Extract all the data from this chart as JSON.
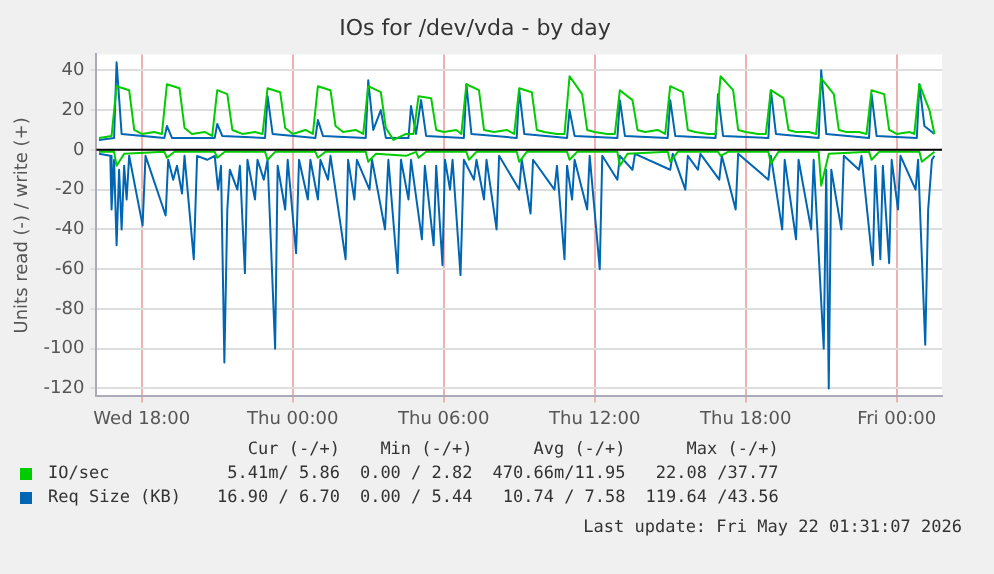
{
  "chart_data": {
    "type": "line",
    "title": "IOs for /dev/vda - by day",
    "ylabel": "Units read (-) / write (+)",
    "xlim": [
      "2026-05-20T16:12",
      "2026-05-22T01:48"
    ],
    "xticks": [
      {
        "value": "2026-05-20T18:00",
        "label": "Wed 18:00"
      },
      {
        "value": "2026-05-21T00:00",
        "label": "Thu 00:00"
      },
      {
        "value": "2026-05-21T06:00",
        "label": "Thu 06:00"
      },
      {
        "value": "2026-05-21T12:00",
        "label": "Thu 12:00"
      },
      {
        "value": "2026-05-21T18:00",
        "label": "Thu 18:00"
      },
      {
        "value": "2026-05-22T00:00",
        "label": "Fri 00:00"
      }
    ],
    "ylim": [
      -124,
      48
    ],
    "yticks": [
      -120,
      -100,
      -80,
      -60,
      -40,
      -20,
      0,
      20,
      40
    ],
    "grid": true,
    "legend": "bottom",
    "marker": "none",
    "line_style": "solid",
    "ref_lines": [
      {
        "axis": "y",
        "value": 0,
        "color": "#000000"
      }
    ],
    "series": [
      {
        "name": "IO/sec",
        "color": "#00cc00",
        "x": [
          "2026-05-20T16:18",
          "2026-05-20T16:48",
          "2026-05-20T17:00",
          "2026-05-20T17:30",
          "2026-05-20T17:42",
          "2026-05-20T18:00",
          "2026-05-20T18:30",
          "2026-05-20T18:48",
          "2026-05-20T19:00",
          "2026-05-20T19:30",
          "2026-05-20T19:42",
          "2026-05-20T20:00",
          "2026-05-20T20:30",
          "2026-05-20T20:48",
          "2026-05-20T21:00",
          "2026-05-20T21:24",
          "2026-05-20T21:36",
          "2026-05-20T22:00",
          "2026-05-20T22:30",
          "2026-05-20T22:48",
          "2026-05-20T23:00",
          "2026-05-20T23:30",
          "2026-05-20T23:42",
          "2026-05-21T00:00",
          "2026-05-21T00:30",
          "2026-05-21T00:48",
          "2026-05-21T01:00",
          "2026-05-21T01:30",
          "2026-05-21T01:42",
          "2026-05-21T02:00",
          "2026-05-21T02:30",
          "2026-05-21T02:48",
          "2026-05-21T03:00",
          "2026-05-21T03:30",
          "2026-05-21T03:42",
          "2026-05-21T04:00",
          "2026-05-21T04:30",
          "2026-05-21T04:48",
          "2026-05-21T05:00",
          "2026-05-21T05:30",
          "2026-05-21T05:42",
          "2026-05-21T06:00",
          "2026-05-21T06:30",
          "2026-05-21T06:42",
          "2026-05-21T06:54",
          "2026-05-21T07:24",
          "2026-05-21T07:36",
          "2026-05-21T08:00",
          "2026-05-21T08:30",
          "2026-05-21T08:48",
          "2026-05-21T09:00",
          "2026-05-21T09:30",
          "2026-05-21T09:42",
          "2026-05-21T10:00",
          "2026-05-21T10:30",
          "2026-05-21T10:48",
          "2026-05-21T11:00",
          "2026-05-21T11:30",
          "2026-05-21T11:42",
          "2026-05-21T12:00",
          "2026-05-21T12:30",
          "2026-05-21T12:48",
          "2026-05-21T13:00",
          "2026-05-21T13:30",
          "2026-05-21T13:42",
          "2026-05-21T14:00",
          "2026-05-21T14:30",
          "2026-05-21T14:48",
          "2026-05-21T15:00",
          "2026-05-21T15:30",
          "2026-05-21T15:42",
          "2026-05-21T16:00",
          "2026-05-21T16:30",
          "2026-05-21T16:48",
          "2026-05-21T17:00",
          "2026-05-21T17:30",
          "2026-05-21T17:42",
          "2026-05-21T18:00",
          "2026-05-21T18:30",
          "2026-05-21T18:48",
          "2026-05-21T19:00",
          "2026-05-21T19:30",
          "2026-05-21T19:42",
          "2026-05-21T20:00",
          "2026-05-21T20:30",
          "2026-05-21T20:48",
          "2026-05-21T21:00",
          "2026-05-21T21:30",
          "2026-05-21T21:42",
          "2026-05-21T22:00",
          "2026-05-21T22:30",
          "2026-05-21T22:48",
          "2026-05-21T23:00",
          "2026-05-21T23:30",
          "2026-05-21T23:42",
          "2026-05-22T00:00",
          "2026-05-22T00:30",
          "2026-05-22T00:42",
          "2026-05-22T00:54",
          "2026-05-22T01:18",
          "2026-05-22T01:30"
        ],
        "values": [
          6,
          7,
          32,
          30,
          10,
          8,
          9,
          8,
          33,
          31,
          11,
          8,
          9,
          7,
          30,
          28,
          10,
          8,
          9,
          8,
          31,
          29,
          11,
          8,
          10,
          8,
          32,
          30,
          12,
          9,
          10,
          8,
          32,
          29,
          11,
          5,
          8,
          8,
          27,
          26,
          10,
          9,
          10,
          8,
          33,
          30,
          10,
          9,
          10,
          8,
          31,
          29,
          10,
          9,
          8,
          8,
          37,
          28,
          10,
          9,
          8,
          8,
          30,
          25,
          10,
          9,
          10,
          8,
          32,
          29,
          10,
          9,
          8,
          8,
          37,
          30,
          10,
          9,
          8,
          8,
          30,
          26,
          10,
          9,
          9,
          8,
          36,
          28,
          10,
          9,
          9,
          8,
          30,
          28,
          10,
          8,
          9,
          8,
          33,
          20,
          8
        ]
      },
      {
        "name": "Req Size (KB)",
        "color": "#0066b3",
        "x": [
          "2026-05-20T16:18",
          "2026-05-20T16:54",
          "2026-05-20T17:00",
          "2026-05-20T17:12",
          "2026-05-20T18:54",
          "2026-05-20T19:00",
          "2026-05-20T19:12",
          "2026-05-20T20:54",
          "2026-05-20T21:00",
          "2026-05-20T21:12",
          "2026-05-20T22:54",
          "2026-05-20T23:00",
          "2026-05-20T23:12",
          "2026-05-21T00:54",
          "2026-05-21T01:00",
          "2026-05-21T01:12",
          "2026-05-21T02:54",
          "2026-05-21T03:00",
          "2026-05-21T03:12",
          "2026-05-21T03:30",
          "2026-05-21T03:42",
          "2026-05-21T04:36",
          "2026-05-21T04:42",
          "2026-05-21T04:54",
          "2026-05-21T05:06",
          "2026-05-21T05:18",
          "2026-05-21T06:48",
          "2026-05-21T06:54",
          "2026-05-21T07:06",
          "2026-05-21T08:54",
          "2026-05-21T09:00",
          "2026-05-21T09:12",
          "2026-05-21T10:54",
          "2026-05-21T11:00",
          "2026-05-21T11:12",
          "2026-05-21T12:54",
          "2026-05-21T13:00",
          "2026-05-21T13:12",
          "2026-05-21T14:54",
          "2026-05-21T15:00",
          "2026-05-21T15:12",
          "2026-05-21T16:48",
          "2026-05-21T16:54",
          "2026-05-21T17:06",
          "2026-05-21T18:54",
          "2026-05-21T19:00",
          "2026-05-21T19:12",
          "2026-05-21T20:54",
          "2026-05-21T21:00",
          "2026-05-21T21:12",
          "2026-05-21T22:54",
          "2026-05-21T23:00",
          "2026-05-21T23:12",
          "2026-05-22T00:48",
          "2026-05-22T00:54",
          "2026-05-22T01:06",
          "2026-05-22T01:30"
        ],
        "values": [
          5,
          6,
          44,
          8,
          6,
          12,
          6,
          6,
          13,
          7,
          6,
          27,
          8,
          6,
          15,
          7,
          6,
          35,
          10,
          20,
          6,
          6,
          22,
          8,
          25,
          7,
          6,
          33,
          8,
          6,
          30,
          8,
          6,
          20,
          7,
          6,
          25,
          7,
          6,
          25,
          7,
          6,
          28,
          7,
          6,
          30,
          8,
          6,
          40,
          8,
          6,
          28,
          7,
          6,
          33,
          12,
          8
        ]
      },
      {
        "color": "#00cc00",
        "x": [
          "2026-05-20T16:18",
          "2026-05-20T16:54",
          "2026-05-20T17:00",
          "2026-05-20T17:18",
          "2026-05-20T18:54",
          "2026-05-20T19:00",
          "2026-05-20T19:18",
          "2026-05-20T20:54",
          "2026-05-20T21:00",
          "2026-05-20T21:18",
          "2026-05-20T22:54",
          "2026-05-20T23:00",
          "2026-05-20T23:18",
          "2026-05-21T00:54",
          "2026-05-21T01:00",
          "2026-05-21T01:18",
          "2026-05-21T02:54",
          "2026-05-21T03:00",
          "2026-05-21T03:18",
          "2026-05-21T04:30",
          "2026-05-21T04:54",
          "2026-05-21T05:00",
          "2026-05-21T05:18",
          "2026-05-21T06:54",
          "2026-05-21T07:00",
          "2026-05-21T07:18",
          "2026-05-21T08:54",
          "2026-05-21T09:00",
          "2026-05-21T09:18",
          "2026-05-21T10:54",
          "2026-05-21T11:00",
          "2026-05-21T11:18",
          "2026-05-21T12:54",
          "2026-05-21T13:00",
          "2026-05-21T13:18",
          "2026-05-21T14:54",
          "2026-05-21T15:00",
          "2026-05-21T15:18",
          "2026-05-21T16:54",
          "2026-05-21T17:00",
          "2026-05-21T17:18",
          "2026-05-21T18:54",
          "2026-05-21T19:00",
          "2026-05-21T19:18",
          "2026-05-21T20:54",
          "2026-05-21T21:00",
          "2026-05-21T21:18",
          "2026-05-21T22:54",
          "2026-05-21T23:00",
          "2026-05-21T23:18",
          "2026-05-22T00:54",
          "2026-05-22T01:00",
          "2026-05-22T01:30"
        ],
        "values": [
          -1,
          -1,
          -8,
          -2,
          -1,
          -4,
          -1,
          -1,
          -4,
          -1,
          -1,
          -5,
          -1,
          -1,
          -4,
          -1,
          -1,
          -6,
          -2,
          -3,
          -1,
          -4,
          -1,
          -1,
          -5,
          -1,
          -1,
          -6,
          -1,
          -1,
          -5,
          -1,
          -1,
          -8,
          -2,
          -1,
          -6,
          -1,
          -1,
          -3,
          -1,
          -1,
          -7,
          -1,
          -1,
          -18,
          -2,
          -1,
          -5,
          -1,
          -1,
          -6,
          -1
        ]
      },
      {
        "color": "#0066b3",
        "x": [
          "2026-05-20T16:18",
          "2026-05-20T16:45",
          "2026-05-20T16:48",
          "2026-05-20T16:54",
          "2026-05-20T17:00",
          "2026-05-20T17:06",
          "2026-05-20T17:12",
          "2026-05-20T17:18",
          "2026-05-20T17:24",
          "2026-05-20T17:30",
          "2026-05-20T18:02",
          "2026-05-20T18:09",
          "2026-05-20T18:57",
          "2026-05-20T19:03",
          "2026-05-20T19:15",
          "2026-05-20T19:24",
          "2026-05-20T19:36",
          "2026-05-20T19:42",
          "2026-05-20T20:04",
          "2026-05-20T20:12",
          "2026-05-20T20:36",
          "2026-05-20T20:54",
          "2026-05-20T21:02",
          "2026-05-20T21:09",
          "2026-05-20T21:17",
          "2026-05-20T21:24",
          "2026-05-20T21:30",
          "2026-05-20T21:48",
          "2026-05-20T21:54",
          "2026-05-20T22:06",
          "2026-05-20T22:12",
          "2026-05-20T22:30",
          "2026-05-20T22:36",
          "2026-05-20T22:51",
          "2026-05-20T23:00",
          "2026-05-20T23:18",
          "2026-05-20T23:24",
          "2026-05-20T23:42",
          "2026-05-20T23:48",
          "2026-05-21T00:08",
          "2026-05-21T00:15",
          "2026-05-21T00:36",
          "2026-05-21T00:42",
          "2026-05-21T01:00",
          "2026-05-21T01:06",
          "2026-05-21T01:24",
          "2026-05-21T01:30",
          "2026-05-21T02:06",
          "2026-05-21T02:12",
          "2026-05-21T02:27",
          "2026-05-21T02:33",
          "2026-05-21T03:03",
          "2026-05-21T03:09",
          "2026-05-21T03:40",
          "2026-05-21T03:48",
          "2026-05-21T04:10",
          "2026-05-21T04:18",
          "2026-05-21T04:36",
          "2026-05-21T04:42",
          "2026-05-21T05:08",
          "2026-05-21T05:15",
          "2026-05-21T05:36",
          "2026-05-21T05:42",
          "2026-05-21T05:57",
          "2026-05-21T06:03",
          "2026-05-21T06:15",
          "2026-05-21T06:21",
          "2026-05-21T06:40",
          "2026-05-21T06:48",
          "2026-05-21T07:12",
          "2026-05-21T07:18",
          "2026-05-21T07:36",
          "2026-05-21T07:42",
          "2026-05-21T08:06",
          "2026-05-21T08:12",
          "2026-05-21T09:00",
          "2026-05-21T09:06",
          "2026-05-21T09:27",
          "2026-05-21T09:33",
          "2026-05-21T10:24",
          "2026-05-21T10:30",
          "2026-05-21T10:48",
          "2026-05-21T10:54",
          "2026-05-21T11:06",
          "2026-05-21T11:12",
          "2026-05-21T11:42",
          "2026-05-21T11:48",
          "2026-05-21T12:12",
          "2026-05-21T12:18",
          "2026-05-21T12:54",
          "2026-05-21T13:00",
          "2026-05-21T13:30",
          "2026-05-21T13:36",
          "2026-05-21T15:00",
          "2026-05-21T15:06",
          "2026-05-21T15:36",
          "2026-05-21T15:42",
          "2026-05-21T16:06",
          "2026-05-21T16:12",
          "2026-05-21T16:57",
          "2026-05-21T17:03",
          "2026-05-21T17:36",
          "2026-05-21T17:42",
          "2026-05-21T18:54",
          "2026-05-21T19:00",
          "2026-05-21T19:27",
          "2026-05-21T19:33",
          "2026-05-21T20:00",
          "2026-05-21T20:06",
          "2026-05-21T20:36",
          "2026-05-21T20:42",
          "2026-05-21T21:06",
          "2026-05-21T21:12",
          "2026-05-21T21:18",
          "2026-05-21T21:24",
          "2026-05-21T21:48",
          "2026-05-21T21:54",
          "2026-05-21T22:30",
          "2026-05-21T22:36",
          "2026-05-21T23:03",
          "2026-05-21T23:09",
          "2026-05-21T23:21",
          "2026-05-21T23:27",
          "2026-05-21T23:42",
          "2026-05-21T23:48",
          "2026-05-22T00:03",
          "2026-05-22T00:09",
          "2026-05-22T00:45",
          "2026-05-22T00:51",
          "2026-05-22T01:08",
          "2026-05-22T01:15",
          "2026-05-22T01:24",
          "2026-05-22T01:30"
        ],
        "values": [
          -2,
          -3,
          -30,
          -5,
          -48,
          -10,
          -40,
          -8,
          -25,
          -3,
          -38,
          -3,
          -33,
          -5,
          -15,
          -8,
          -22,
          -3,
          -55,
          -3,
          -5,
          -3,
          -20,
          -8,
          -107,
          -30,
          -10,
          -20,
          -8,
          -62,
          -5,
          -25,
          -5,
          -15,
          -5,
          -100,
          -8,
          -30,
          -5,
          -52,
          -5,
          -25,
          -5,
          -25,
          -5,
          -15,
          -3,
          -55,
          -5,
          -25,
          -5,
          -20,
          -5,
          -40,
          -5,
          -62,
          -5,
          -25,
          -5,
          -45,
          -8,
          -48,
          -8,
          -58,
          -5,
          -20,
          -5,
          -63,
          -5,
          -15,
          -5,
          -25,
          -5,
          -40,
          -3,
          -20,
          -5,
          -32,
          -5,
          -20,
          -8,
          -55,
          -8,
          -25,
          -5,
          -30,
          -3,
          -60,
          -3,
          -15,
          -3,
          -10,
          -2,
          -10,
          -2,
          -20,
          -3,
          -10,
          -2,
          -15,
          -3,
          -30,
          -2,
          -15,
          -3,
          -40,
          -5,
          -45,
          -5,
          -40,
          -5,
          -100,
          -10,
          -120,
          -10,
          -40,
          -3,
          -10,
          -3,
          -58,
          -8,
          -55,
          -8,
          -57,
          -5,
          -30,
          -3,
          -20,
          -5,
          -98,
          -30,
          -5,
          -3
        ]
      }
    ],
    "annotations": [
      "Cur (-/+)",
      "Min (-/+)",
      "Avg (-/+)",
      "Max (-/+)",
      "5.41m/ 5.86",
      "0.00 / 2.82",
      "470.66m/11.95",
      "22.08 /37.77",
      "16.90 / 6.70",
      "0.00 / 5.44",
      "10.74 / 7.58",
      "119.64 /43.56",
      "Last update: Fri May 22 01:31:07 2026"
    ]
  }
}
